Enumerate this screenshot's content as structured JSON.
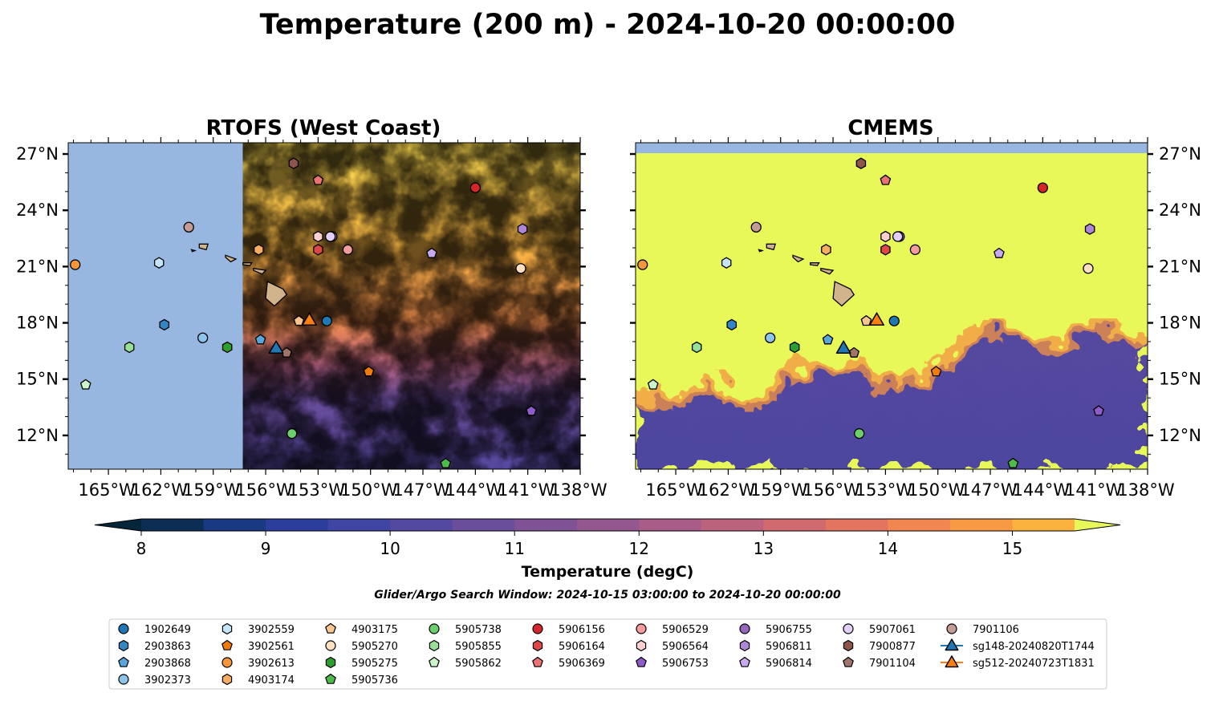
{
  "figure": {
    "title": "Temperature (200 m) - 2024-10-20 00:00:00",
    "search_window": "Glider/Argo Search Window: 2024-10-15 03:00:00 to 2024-10-20 00:00:00"
  },
  "chart_data": {
    "type": "heatmap",
    "panels": [
      {
        "title": "RTOFS (West Coast)",
        "model_coverage_lon": [
          -157.3,
          -138
        ]
      },
      {
        "title": "CMEMS",
        "model_coverage_lon": [
          -167.3,
          -138
        ]
      }
    ],
    "x_ticks": [
      "165°W",
      "162°W",
      "159°W",
      "156°W",
      "153°W",
      "150°W",
      "147°W",
      "144°W",
      "141°W",
      "138°W"
    ],
    "x_tick_values": [
      -165,
      -162,
      -159,
      -156,
      -153,
      -150,
      -147,
      -144,
      -141,
      -138
    ],
    "y_ticks": [
      "27°N",
      "24°N",
      "21°N",
      "18°N",
      "15°N",
      "12°N"
    ],
    "y_tick_values": [
      27,
      24,
      21,
      18,
      15,
      12
    ],
    "xlim": [
      -167.3,
      -138
    ],
    "ylim": [
      10.2,
      27.6
    ],
    "colorbar": {
      "label": "Temperature (degC)",
      "ticks": [
        "8",
        "9",
        "10",
        "11",
        "12",
        "13",
        "14",
        "15"
      ],
      "tick_values": [
        8,
        9,
        10,
        11,
        12,
        13,
        14,
        15
      ],
      "range": [
        8,
        15.5
      ],
      "colors": [
        "#04263a",
        "#0d2d55",
        "#193a82",
        "#2b3e9c",
        "#3e45a3",
        "#5449a0",
        "#6a4d9b",
        "#7e5295",
        "#94578f",
        "#a85c87",
        "#bb627d",
        "#d06a6f",
        "#e37560",
        "#f18650",
        "#f89a43",
        "#fbb13d",
        "#f7cb44",
        "#eee354"
      ],
      "under_color": "#04263a",
      "over_color": "#e8f858"
    },
    "land_color": "#d2b48c",
    "ocean_mask_color": "#97b6e0",
    "platforms": [
      {
        "id": "1902649",
        "marker": "circle",
        "color": "#1f77b4",
        "lon": -152.5,
        "lat": 18.1
      },
      {
        "id": "2903863",
        "marker": "hexagon",
        "color": "#3286c3",
        "lon": -161.8,
        "lat": 17.9
      },
      {
        "id": "2903868",
        "marker": "pentagon",
        "color": "#5aa6dc",
        "lon": -156.3,
        "lat": 17.1
      },
      {
        "id": "3902373",
        "marker": "circle",
        "color": "#8cc4ea",
        "lon": -159.6,
        "lat": 17.2
      },
      {
        "id": "3902559",
        "marker": "hexagon",
        "color": "#c7e5f8",
        "lon": -162.1,
        "lat": 21.2
      },
      {
        "id": "3902561",
        "marker": "pentagon",
        "color": "#f07d0a",
        "lon": -150.1,
        "lat": 15.4
      },
      {
        "id": "3902613",
        "marker": "circle",
        "color": "#f6963a",
        "lon": -166.9,
        "lat": 21.1
      },
      {
        "id": "4903174",
        "marker": "hexagon",
        "color": "#f8ad62",
        "lon": -156.4,
        "lat": 21.9
      },
      {
        "id": "4903175",
        "marker": "pentagon",
        "color": "#fbc58f",
        "lon": -154.1,
        "lat": 18.1
      },
      {
        "id": "5905270",
        "marker": "circle",
        "color": "#fde0c2",
        "lon": -141.4,
        "lat": 20.9
      },
      {
        "id": "5905275",
        "marker": "hexagon",
        "color": "#2ca02c",
        "lon": -158.2,
        "lat": 16.7
      },
      {
        "id": "5905736",
        "marker": "pentagon",
        "color": "#4cbb4c",
        "lon": -145.7,
        "lat": 10.5
      },
      {
        "id": "5905738",
        "marker": "circle",
        "color": "#6ccf6c",
        "lon": -154.5,
        "lat": 12.1
      },
      {
        "id": "5905855",
        "marker": "hexagon",
        "color": "#97e097",
        "lon": -163.8,
        "lat": 16.7
      },
      {
        "id": "5905862",
        "marker": "pentagon",
        "color": "#ccf5cc",
        "lon": -166.3,
        "lat": 14.7
      },
      {
        "id": "5906156",
        "marker": "circle",
        "color": "#d62728",
        "lon": -144.0,
        "lat": 25.2
      },
      {
        "id": "5906164",
        "marker": "hexagon",
        "color": "#df4747",
        "lon": -153.0,
        "lat": 21.9
      },
      {
        "id": "5906369",
        "marker": "pentagon",
        "color": "#ec7373",
        "lon": -153.0,
        "lat": 25.6
      },
      {
        "id": "5906529",
        "marker": "circle",
        "color": "#f59d9d",
        "lon": -151.3,
        "lat": 21.9
      },
      {
        "id": "5906564",
        "marker": "hexagon",
        "color": "#fbd0d0",
        "lon": -153.0,
        "lat": 22.6
      },
      {
        "id": "5906753",
        "marker": "pentagon",
        "color": "#8e5cc9",
        "lon": -140.8,
        "lat": 13.3
      },
      {
        "id": "5906755",
        "marker": "circle",
        "color": "#9467bd",
        "lon": -152.2,
        "lat": 22.6
      },
      {
        "id": "5906811",
        "marker": "hexagon",
        "color": "#ad86d9",
        "lon": -141.3,
        "lat": 23.0
      },
      {
        "id": "5906814",
        "marker": "pentagon",
        "color": "#c7a9ef",
        "lon": -146.5,
        "lat": 21.7
      },
      {
        "id": "5907061",
        "marker": "circle",
        "color": "#e3d0fa",
        "lon": -152.3,
        "lat": 22.6
      },
      {
        "id": "7900877",
        "marker": "hexagon",
        "color": "#8c564b",
        "lon": -154.4,
        "lat": 26.5
      },
      {
        "id": "7901104",
        "marker": "pentagon",
        "color": "#a3756a",
        "lon": -154.8,
        "lat": 16.4
      },
      {
        "id": "7901106",
        "marker": "circle",
        "color": "#c49c94",
        "lon": -160.4,
        "lat": 23.1
      }
    ],
    "gliders": [
      {
        "id": "sg148-20240820T1744",
        "marker": "triangle",
        "color": "#1f77b4",
        "lon": -155.4,
        "lat": 16.6
      },
      {
        "id": "sg512-20240723T1831",
        "marker": "triangle",
        "color": "#ff7f0e",
        "lon": -153.5,
        "lat": 18.1
      }
    ]
  }
}
